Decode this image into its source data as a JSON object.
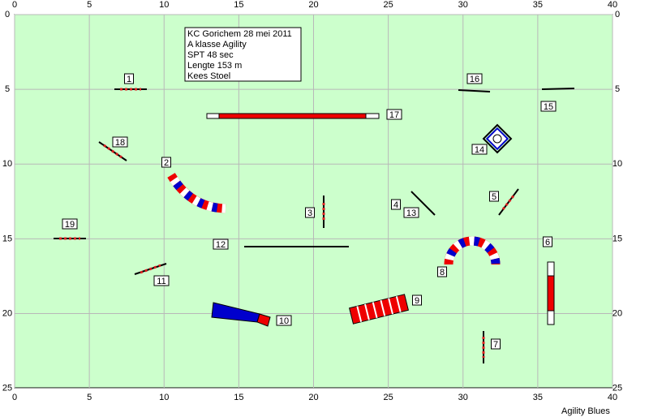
{
  "axes": {
    "x_ticks": [
      0,
      5,
      10,
      15,
      20,
      25,
      30,
      35,
      40
    ],
    "y_ticks": [
      0,
      5,
      10,
      15,
      20,
      25
    ]
  },
  "info": {
    "lines": [
      "KC Gorichem 28 mei 2011",
      "A klasse Agility",
      "SPT 48 sec",
      "Lengte 153 m",
      "Kees Stoel"
    ]
  },
  "obstacles": [
    "1",
    "2",
    "3",
    "4",
    "13",
    "5",
    "6",
    "7",
    "8",
    "9",
    "10",
    "11",
    "12",
    "14",
    "15",
    "16",
    "17",
    "18",
    "19"
  ],
  "footer": "Agility Blues"
}
